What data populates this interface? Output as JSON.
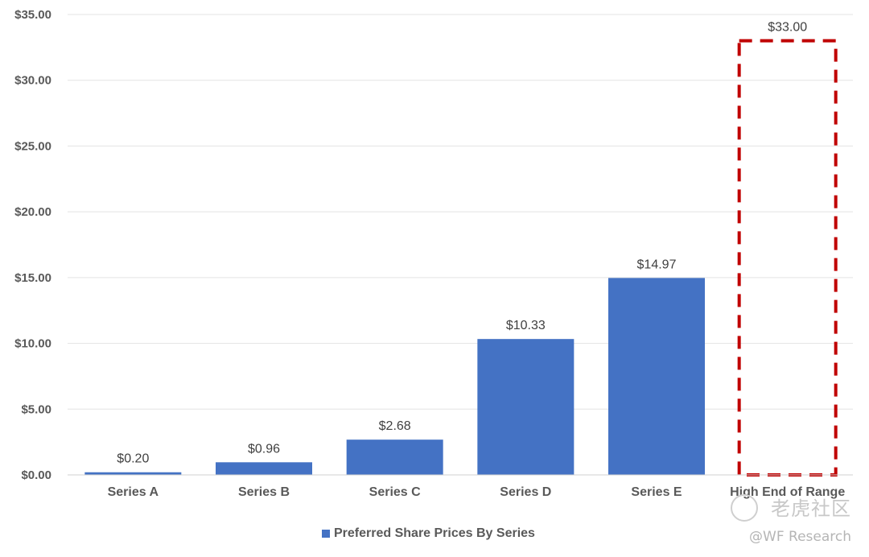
{
  "chart_data": {
    "type": "bar",
    "title": "",
    "xlabel": "",
    "ylabel": "",
    "ylim": [
      0,
      35
    ],
    "yticks": [
      "$0.00",
      "$5.00",
      "$10.00",
      "$15.00",
      "$20.00",
      "$25.00",
      "$30.00",
      "$35.00"
    ],
    "categories": [
      "Series A",
      "Series B",
      "Series C",
      "Series D",
      "Series E",
      "High End of Range"
    ],
    "series": [
      {
        "name": "Preferred Share Prices By Series",
        "values": [
          0.2,
          0.96,
          2.68,
          10.33,
          14.97,
          33.0
        ],
        "labels": [
          "$0.20",
          "$0.96",
          "$2.68",
          "$10.33",
          "$14.97",
          "$33.00"
        ]
      }
    ],
    "highlight_category_index": 5,
    "grid": true,
    "legend_position": "bottom",
    "colors": {
      "bar": "#4472C4",
      "highlight_outline": "#C00000",
      "grid": "#e3e3e3",
      "text": "#595959"
    }
  },
  "watermark": {
    "line1": "老虎社区",
    "line2": "@WF Research"
  }
}
